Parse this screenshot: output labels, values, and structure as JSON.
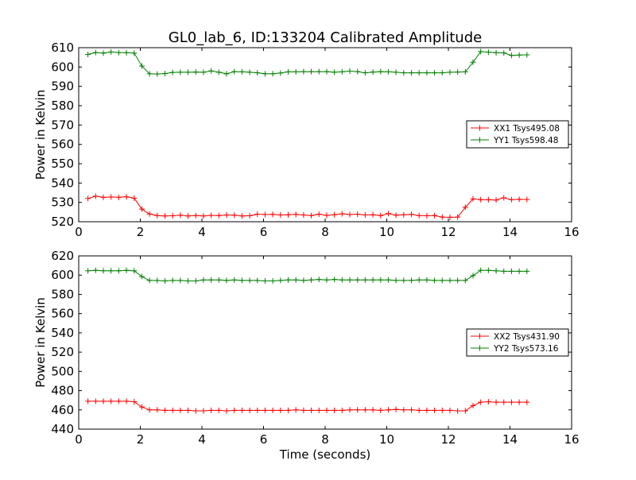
{
  "chart_data": [
    {
      "type": "line",
      "title": "GL0_lab_6, ID:133204 Calibrated Amplitude",
      "xlabel": "",
      "ylabel": "Power in Kelvin",
      "xlim": [
        0,
        16
      ],
      "ylim": [
        520,
        610
      ],
      "xticks": [
        0,
        2,
        4,
        6,
        8,
        10,
        12,
        14,
        16
      ],
      "yticks": [
        520,
        530,
        540,
        550,
        560,
        570,
        580,
        590,
        600,
        610
      ],
      "grid": false,
      "legend_position": "right",
      "x": [
        0.3,
        0.55,
        0.8,
        1.05,
        1.3,
        1.55,
        1.8,
        2.05,
        2.3,
        2.55,
        2.8,
        3.05,
        3.3,
        3.55,
        3.8,
        4.05,
        4.3,
        4.55,
        4.8,
        5.05,
        5.3,
        5.55,
        5.8,
        6.05,
        6.3,
        6.55,
        6.8,
        7.05,
        7.3,
        7.55,
        7.8,
        8.05,
        8.3,
        8.55,
        8.8,
        9.05,
        9.3,
        9.55,
        9.8,
        10.05,
        10.3,
        10.55,
        10.8,
        11.05,
        11.3,
        11.55,
        11.8,
        12.05,
        12.3,
        12.55,
        12.8,
        13.05,
        13.3,
        13.55,
        13.8,
        14.05,
        14.3,
        14.55
      ],
      "series": [
        {
          "name": "XX1 Tsys495.08",
          "color": "#ff0000",
          "values": [
            532.0,
            533.2,
            532.6,
            532.8,
            532.6,
            532.9,
            532.2,
            526.5,
            524.0,
            523.2,
            523.0,
            523.1,
            523.4,
            523.0,
            523.2,
            523.0,
            523.3,
            523.2,
            523.5,
            523.4,
            523.0,
            523.1,
            523.9,
            523.7,
            523.8,
            523.5,
            523.6,
            523.8,
            523.5,
            523.2,
            523.9,
            523.3,
            523.6,
            524.1,
            523.7,
            523.9,
            523.5,
            523.6,
            523.2,
            524.2,
            523.4,
            523.6,
            523.8,
            523.2,
            523.1,
            523.2,
            522.4,
            522.3,
            522.4,
            527.5,
            531.8,
            531.4,
            531.4,
            531.2,
            532.4,
            531.4,
            531.6,
            531.5
          ]
        },
        {
          "name": "YY1 Tsys598.48",
          "color": "#008000",
          "values": [
            606.5,
            607.5,
            607.2,
            607.8,
            607.5,
            607.4,
            607.2,
            600.5,
            596.5,
            596.4,
            596.6,
            597.2,
            597.3,
            597.3,
            597.4,
            597.3,
            598.0,
            597.3,
            596.5,
            597.6,
            597.5,
            597.3,
            597.0,
            596.5,
            596.5,
            596.9,
            597.5,
            597.5,
            597.6,
            597.6,
            597.6,
            597.6,
            597.3,
            597.5,
            597.9,
            597.6,
            597.0,
            597.4,
            597.6,
            597.5,
            597.3,
            597.0,
            597.0,
            597.0,
            597.0,
            597.0,
            597.0,
            597.3,
            597.4,
            597.5,
            602.5,
            608.0,
            607.7,
            607.4,
            607.3,
            606.0,
            606.2,
            606.3
          ]
        }
      ]
    },
    {
      "type": "line",
      "title": "",
      "xlabel": "Time (seconds)",
      "ylabel": "Power in Kelvin",
      "xlim": [
        0,
        16
      ],
      "ylim": [
        440,
        620
      ],
      "xticks": [
        0,
        2,
        4,
        6,
        8,
        10,
        12,
        14,
        16
      ],
      "yticks": [
        440,
        460,
        480,
        500,
        520,
        540,
        560,
        580,
        600,
        620
      ],
      "grid": false,
      "legend_position": "right",
      "x": [
        0.3,
        0.55,
        0.8,
        1.05,
        1.3,
        1.55,
        1.8,
        2.05,
        2.3,
        2.55,
        2.8,
        3.05,
        3.3,
        3.55,
        3.8,
        4.05,
        4.3,
        4.55,
        4.8,
        5.05,
        5.3,
        5.55,
        5.8,
        6.05,
        6.3,
        6.55,
        6.8,
        7.05,
        7.3,
        7.55,
        7.8,
        8.05,
        8.3,
        8.55,
        8.8,
        9.05,
        9.3,
        9.55,
        9.8,
        10.05,
        10.3,
        10.55,
        10.8,
        11.05,
        11.3,
        11.55,
        11.8,
        12.05,
        12.3,
        12.55,
        12.8,
        13.05,
        13.3,
        13.55,
        13.8,
        14.05,
        14.3,
        14.55
      ],
      "series": [
        {
          "name": "XX2 Tsys431.90",
          "color": "#ff0000",
          "values": [
            469.0,
            469.0,
            469.0,
            469.0,
            469.0,
            469.0,
            468.5,
            463.0,
            460.0,
            460.0,
            459.5,
            459.5,
            459.5,
            459.5,
            459.0,
            459.0,
            459.5,
            459.5,
            459.0,
            459.5,
            459.5,
            459.5,
            459.5,
            459.5,
            459.5,
            459.5,
            459.5,
            460.0,
            459.5,
            459.5,
            459.5,
            459.5,
            459.5,
            459.5,
            460.0,
            460.0,
            460.0,
            460.0,
            459.5,
            460.0,
            460.5,
            460.0,
            460.0,
            459.5,
            459.5,
            459.5,
            459.5,
            459.5,
            459.0,
            459.0,
            464.5,
            468.0,
            468.5,
            468.0,
            468.0,
            468.0,
            468.0,
            468.0
          ]
        },
        {
          "name": "YY2 Tsys573.16",
          "color": "#008000",
          "values": [
            604.5,
            605.0,
            604.5,
            604.5,
            604.5,
            605.0,
            604.5,
            598.5,
            594.5,
            594.5,
            594.0,
            594.5,
            594.5,
            594.0,
            594.0,
            595.0,
            595.0,
            595.0,
            594.5,
            595.0,
            594.5,
            594.5,
            594.5,
            594.0,
            594.0,
            594.5,
            595.0,
            595.0,
            594.5,
            595.0,
            595.5,
            595.0,
            595.5,
            595.0,
            595.0,
            595.0,
            595.0,
            595.0,
            595.0,
            595.0,
            594.5,
            594.5,
            594.5,
            595.0,
            595.0,
            594.5,
            594.5,
            594.5,
            594.5,
            594.5,
            599.5,
            605.0,
            605.0,
            604.5,
            604.0,
            604.0,
            604.0,
            604.0
          ]
        }
      ]
    }
  ]
}
